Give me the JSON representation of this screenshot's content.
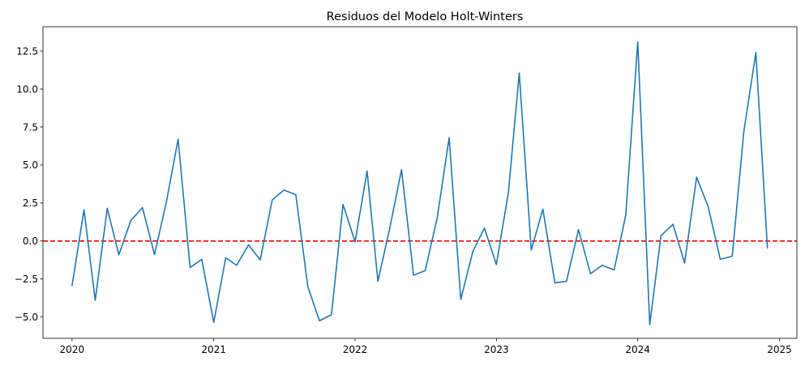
{
  "chart_data": {
    "type": "line",
    "title": "Residuos del Modelo Holt-Winters",
    "xlabel": "",
    "ylabel": "",
    "x_ticks": [
      "2020",
      "2021",
      "2022",
      "2023",
      "2024",
      "2025"
    ],
    "y_ticks": [
      "−5.0",
      "−2.5",
      "0.0",
      "2.5",
      "5.0",
      "7.5",
      "10.0",
      "12.5"
    ],
    "xlim": [
      "2019-10-18",
      "2025-02-15"
    ],
    "ylim": [
      -6.4,
      14.1
    ],
    "grid": false,
    "legend": "none",
    "x": [
      "2020-01",
      "2020-02",
      "2020-03",
      "2020-04",
      "2020-05",
      "2020-06",
      "2020-07",
      "2020-08",
      "2020-09",
      "2020-10",
      "2020-11",
      "2020-12",
      "2021-01",
      "2021-02",
      "2021-03",
      "2021-04",
      "2021-05",
      "2021-06",
      "2021-07",
      "2021-08",
      "2021-09",
      "2021-10",
      "2021-11",
      "2021-12",
      "2022-01",
      "2022-02",
      "2022-03",
      "2022-04",
      "2022-05",
      "2022-06",
      "2022-07",
      "2022-08",
      "2022-09",
      "2022-10",
      "2022-11",
      "2022-12",
      "2023-01",
      "2023-02",
      "2023-03",
      "2023-04",
      "2023-05",
      "2023-06",
      "2023-07",
      "2023-08",
      "2023-09",
      "2023-10",
      "2023-11",
      "2023-12",
      "2024-01",
      "2024-02",
      "2024-03",
      "2024-04",
      "2024-05",
      "2024-06",
      "2024-07",
      "2024-08",
      "2024-09",
      "2024-10",
      "2024-11",
      "2024-12"
    ],
    "series": [
      {
        "color": "#1f77b4",
        "values": [
          -2.95,
          2.05,
          -3.9,
          2.15,
          -0.9,
          1.35,
          2.2,
          -0.9,
          2.6,
          6.7,
          -1.75,
          -1.2,
          -5.35,
          -1.1,
          -1.6,
          -0.25,
          -1.25,
          2.7,
          3.35,
          3.05,
          -3.0,
          -5.25,
          -4.85,
          2.4,
          -0.05,
          4.6,
          -2.65,
          0.9,
          4.7,
          -2.25,
          -1.95,
          1.5,
          6.8,
          -3.85,
          -0.7,
          0.85,
          -1.55,
          3.2,
          11.05,
          -0.6,
          2.1,
          -2.75,
          -2.65,
          0.75,
          -2.15,
          -1.6,
          -1.9,
          1.7,
          13.1,
          -5.5,
          0.35,
          1.1,
          -1.45,
          4.2,
          2.25,
          -1.2,
          -1.0,
          7.2,
          12.4,
          -0.5
        ]
      }
    ],
    "reference_line": {
      "y": 0.0,
      "color": "#ff0000",
      "style": "dashed"
    }
  }
}
